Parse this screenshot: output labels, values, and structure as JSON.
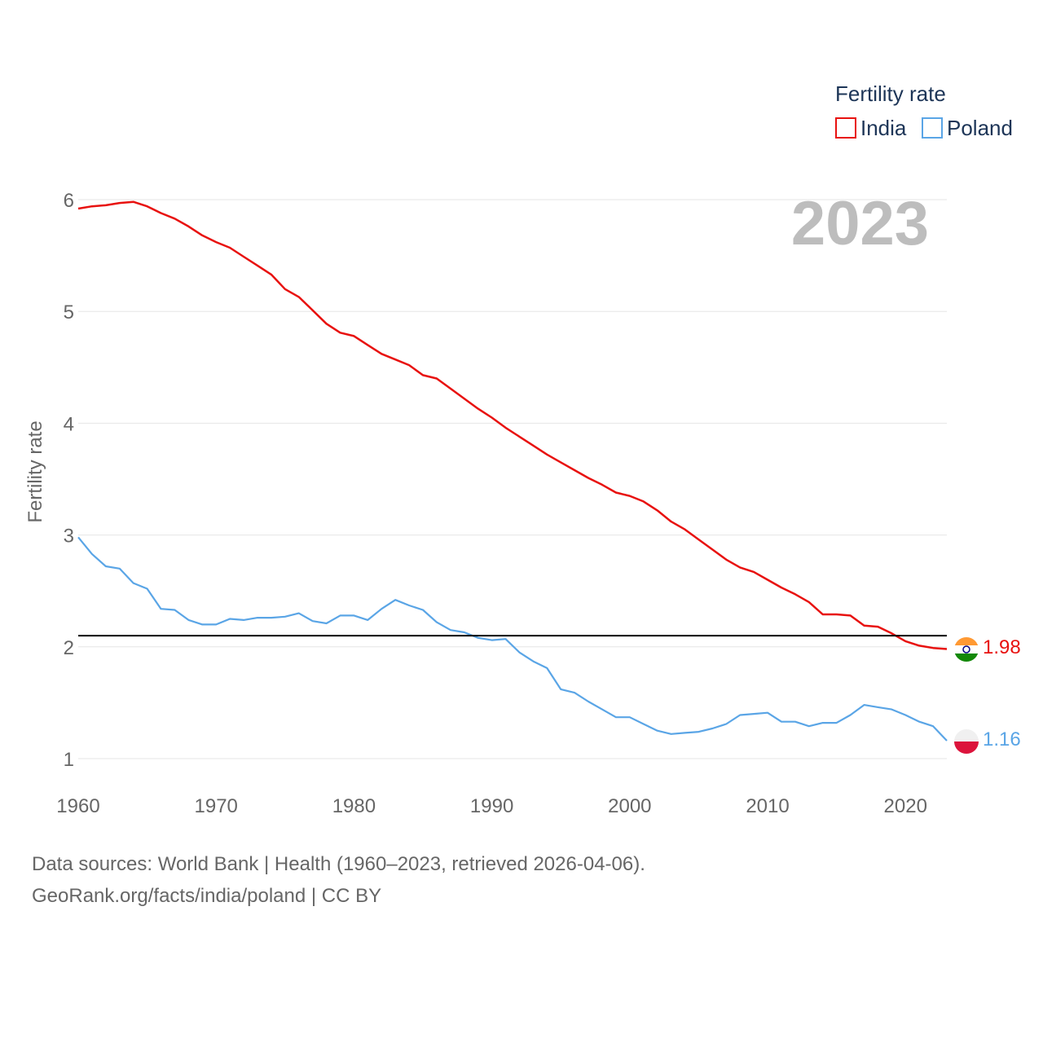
{
  "chart_data": {
    "type": "line",
    "year_label": "2023",
    "ylabel": "Fertility rate",
    "xlabel": "",
    "xlim": [
      1960,
      2023
    ],
    "ylim": [
      0.9,
      6.1
    ],
    "x_ticks": [
      1960,
      1970,
      1980,
      1990,
      2000,
      2010,
      2020
    ],
    "x_tick_labels": [
      "1960",
      "1970",
      "1980",
      "1990",
      "2000",
      "2010",
      "2020"
    ],
    "y_ticks": [
      1,
      2,
      3,
      4,
      5,
      6
    ],
    "y_tick_labels": [
      "1",
      "2",
      "3",
      "4",
      "5",
      "6"
    ],
    "reference_line": {
      "value": 2.1,
      "color": "#000000"
    },
    "legend": {
      "title": "Fertility rate",
      "position": "top-right"
    },
    "x": [
      1960,
      1961,
      1962,
      1963,
      1964,
      1965,
      1966,
      1967,
      1968,
      1969,
      1970,
      1971,
      1972,
      1973,
      1974,
      1975,
      1976,
      1977,
      1978,
      1979,
      1980,
      1981,
      1982,
      1983,
      1984,
      1985,
      1986,
      1987,
      1988,
      1989,
      1990,
      1991,
      1992,
      1993,
      1994,
      1995,
      1996,
      1997,
      1998,
      1999,
      2000,
      2001,
      2002,
      2003,
      2004,
      2005,
      2006,
      2007,
      2008,
      2009,
      2010,
      2011,
      2012,
      2013,
      2014,
      2015,
      2016,
      2017,
      2018,
      2019,
      2020,
      2021,
      2022,
      2023
    ],
    "series": [
      {
        "name": "India",
        "color": "#e8110f",
        "end_label": "1.98",
        "values": [
          5.92,
          5.94,
          5.95,
          5.97,
          5.98,
          5.94,
          5.88,
          5.83,
          5.76,
          5.68,
          5.62,
          5.57,
          5.49,
          5.41,
          5.33,
          5.2,
          5.13,
          5.01,
          4.89,
          4.81,
          4.78,
          4.7,
          4.62,
          4.57,
          4.52,
          4.43,
          4.4,
          4.31,
          4.22,
          4.13,
          4.05,
          3.96,
          3.88,
          3.8,
          3.72,
          3.65,
          3.58,
          3.51,
          3.45,
          3.38,
          3.35,
          3.3,
          3.22,
          3.12,
          3.05,
          2.96,
          2.87,
          2.78,
          2.71,
          2.67,
          2.6,
          2.53,
          2.47,
          2.4,
          2.29,
          2.29,
          2.28,
          2.19,
          2.18,
          2.12,
          2.05,
          2.01,
          1.99,
          1.98
        ]
      },
      {
        "name": "Poland",
        "color": "#5aa5e6",
        "end_label": "1.16",
        "values": [
          2.98,
          2.83,
          2.72,
          2.7,
          2.57,
          2.52,
          2.34,
          2.33,
          2.24,
          2.2,
          2.2,
          2.25,
          2.24,
          2.26,
          2.26,
          2.27,
          2.3,
          2.23,
          2.21,
          2.28,
          2.28,
          2.24,
          2.34,
          2.42,
          2.37,
          2.33,
          2.22,
          2.15,
          2.13,
          2.08,
          2.06,
          2.07,
          1.95,
          1.87,
          1.81,
          1.62,
          1.59,
          1.51,
          1.44,
          1.37,
          1.37,
          1.31,
          1.25,
          1.22,
          1.23,
          1.24,
          1.27,
          1.31,
          1.39,
          1.4,
          1.41,
          1.33,
          1.33,
          1.29,
          1.32,
          1.32,
          1.39,
          1.48,
          1.46,
          1.44,
          1.39,
          1.33,
          1.29,
          1.16
        ]
      }
    ]
  },
  "footer": {
    "source_line": "Data sources: World Bank | Health (1960–2023, retrieved 2026-04-06).",
    "attribution_line": "GeoRank.org/facts/india/poland | CC BY"
  },
  "colors": {
    "india_flag_saffron": "#ff9933",
    "india_flag_green": "#138808",
    "india_chakra": "#000080",
    "poland_red": "#dc143c",
    "poland_white": "#f0f0f0"
  }
}
